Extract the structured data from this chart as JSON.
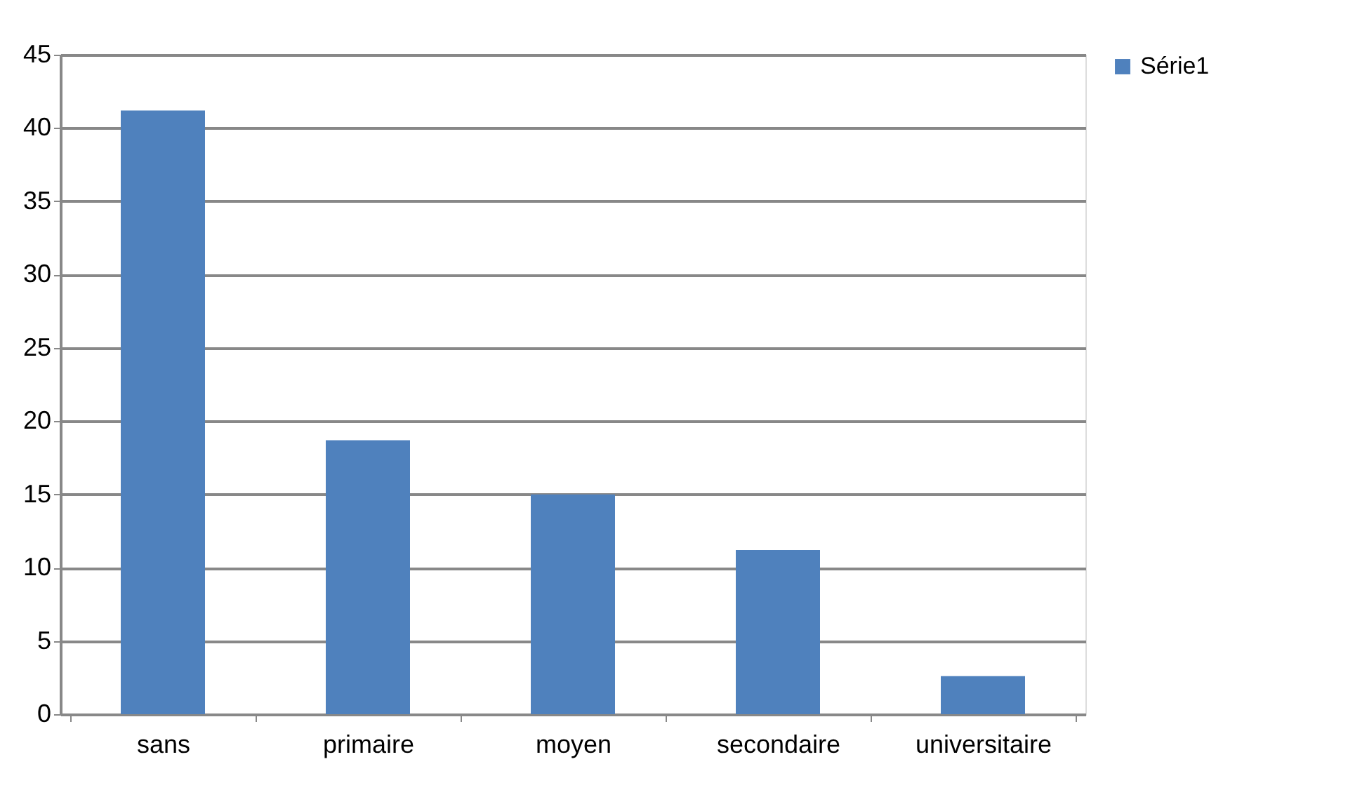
{
  "chart_data": {
    "type": "bar",
    "categories": [
      "sans",
      "primaire",
      "moyen",
      "secondaire",
      "universitaire"
    ],
    "series": [
      {
        "name": "Série1",
        "color": "#4f81bd",
        "values": [
          41.2,
          18.7,
          15.0,
          11.2,
          2.6
        ]
      }
    ],
    "ylim": [
      0,
      45
    ],
    "yticks": [
      0,
      5,
      10,
      15,
      20,
      25,
      30,
      35,
      40,
      45
    ],
    "grid": "y",
    "legend": "right"
  }
}
